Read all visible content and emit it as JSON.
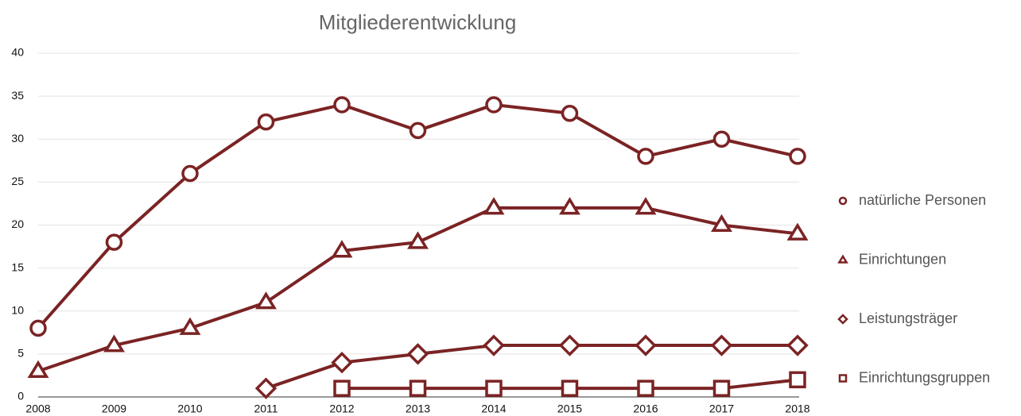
{
  "chart_data": {
    "type": "line",
    "title": "Mitgliederentwicklung",
    "categories": [
      "2008",
      "2009",
      "2010",
      "2011",
      "2012",
      "2013",
      "2014",
      "2015",
      "2016",
      "2017",
      "2018"
    ],
    "series": [
      {
        "name": "natürliche Personen",
        "color": "#7b2324",
        "marker": "circle",
        "values": [
          8,
          18,
          26,
          32,
          34,
          31,
          34,
          33,
          28,
          30,
          28
        ]
      },
      {
        "name": "Einrichtungen",
        "color": "#7b2324",
        "marker": "triangle",
        "values": [
          3,
          6,
          8,
          11,
          17,
          18,
          22,
          22,
          22,
          20,
          19
        ]
      },
      {
        "name": "Leistungsträger",
        "color": "#7b2324",
        "marker": "diamond",
        "values": [
          null,
          null,
          null,
          1,
          4,
          5,
          6,
          6,
          6,
          6,
          6
        ]
      },
      {
        "name": "Einrichtungsgruppen",
        "color": "#7b2324",
        "marker": "square",
        "values": [
          null,
          null,
          null,
          null,
          1,
          1,
          1,
          1,
          1,
          1,
          2
        ]
      }
    ],
    "ylim": [
      0,
      40
    ],
    "yticks": [
      0,
      5,
      10,
      15,
      20,
      25,
      30,
      35,
      40
    ],
    "grid": true,
    "legend": "right"
  }
}
